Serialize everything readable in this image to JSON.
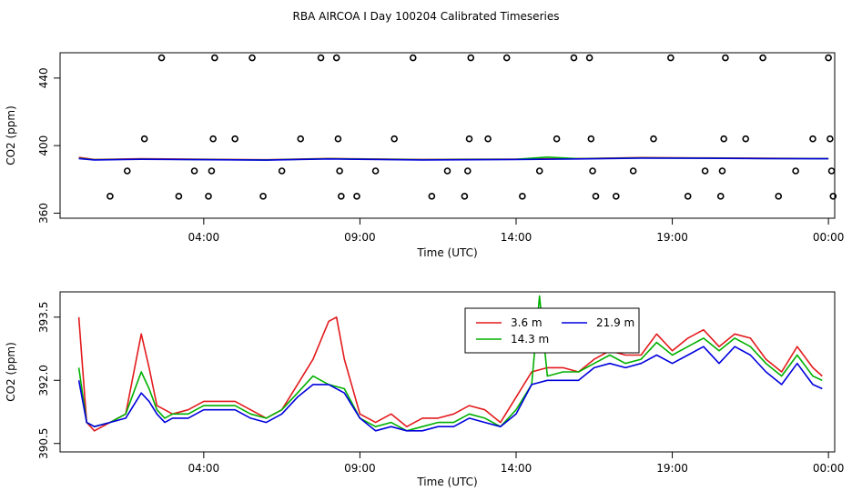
{
  "title": "RBA AIRCOA I  Day 100204  Calibrated Timeseries",
  "colors": {
    "3.6 m": "#e31a1c",
    "14.3 m": "#00b000",
    "21.9 m": "#0000dd",
    "axis": "#000000"
  },
  "chart_data": [
    {
      "type": "scatter",
      "title": "RBA AIRCOA I  Day 100204  Calibrated Timeseries",
      "xlabel": "Time (UTC)",
      "ylabel": "CO2 (ppm)",
      "xlim": [
        -0.6,
        24.2
      ],
      "ylim": [
        357,
        455
      ],
      "xticks": [
        4,
        9,
        14,
        19,
        24
      ],
      "xtick_labels": [
        "04:00",
        "09:00",
        "14:00",
        "19:00",
        "00:00"
      ],
      "yticks": [
        360,
        400,
        440
      ],
      "ytick_labels": [
        "360",
        "400",
        "440"
      ],
      "calibration_points": [
        [
          1.0,
          370
        ],
        [
          1.55,
          385
        ],
        [
          2.1,
          404
        ],
        [
          2.65,
          452
        ],
        [
          3.2,
          370
        ],
        [
          3.7,
          385
        ],
        [
          4.15,
          370
        ],
        [
          4.25,
          385
        ],
        [
          4.3,
          404
        ],
        [
          4.35,
          452
        ],
        [
          5.0,
          404
        ],
        [
          5.55,
          452
        ],
        [
          5.9,
          370
        ],
        [
          6.5,
          385
        ],
        [
          7.1,
          404
        ],
        [
          7.75,
          452
        ],
        [
          8.25,
          452
        ],
        [
          8.3,
          404
        ],
        [
          8.35,
          385
        ],
        [
          8.4,
          370
        ],
        [
          8.9,
          370
        ],
        [
          9.5,
          385
        ],
        [
          10.1,
          404
        ],
        [
          10.7,
          452
        ],
        [
          11.3,
          370
        ],
        [
          11.8,
          385
        ],
        [
          12.35,
          370
        ],
        [
          12.45,
          385
        ],
        [
          12.5,
          404
        ],
        [
          12.55,
          452
        ],
        [
          13.1,
          404
        ],
        [
          13.7,
          452
        ],
        [
          14.2,
          370
        ],
        [
          14.75,
          385
        ],
        [
          15.3,
          404
        ],
        [
          15.85,
          452
        ],
        [
          16.35,
          452
        ],
        [
          16.4,
          404
        ],
        [
          16.45,
          385
        ],
        [
          16.55,
          370
        ],
        [
          17.2,
          370
        ],
        [
          17.75,
          385
        ],
        [
          18.4,
          404
        ],
        [
          18.95,
          452
        ],
        [
          19.5,
          370
        ],
        [
          20.05,
          385
        ],
        [
          20.55,
          370
        ],
        [
          20.6,
          385
        ],
        [
          20.65,
          404
        ],
        [
          20.7,
          452
        ],
        [
          21.35,
          404
        ],
        [
          21.9,
          452
        ],
        [
          22.4,
          370
        ],
        [
          22.95,
          385
        ],
        [
          23.5,
          404
        ],
        [
          24.0,
          452
        ],
        [
          24.05,
          404
        ],
        [
          24.1,
          385
        ],
        [
          24.15,
          370
        ]
      ],
      "series": [
        {
          "name": "3.6 m",
          "x": [
            0,
            0.5,
            2,
            6,
            8,
            11,
            14,
            16,
            18,
            20,
            22,
            24
          ],
          "y": [
            393,
            391.8,
            392.2,
            391.6,
            392.4,
            391.8,
            392,
            392.3,
            392.9,
            392.7,
            392.5,
            392.4
          ]
        },
        {
          "name": "14.3 m",
          "x": [
            0,
            0.5,
            2,
            6,
            8,
            11,
            14,
            15,
            16,
            18,
            20,
            22,
            24
          ],
          "y": [
            392.5,
            391.6,
            392,
            391.5,
            392.2,
            391.6,
            391.9,
            393.2,
            392.2,
            392.7,
            392.6,
            392.4,
            392.3
          ]
        },
        {
          "name": "21.9 m",
          "x": [
            0,
            0.5,
            2,
            6,
            8,
            11,
            14,
            16,
            18,
            20,
            22,
            24
          ],
          "y": [
            392.3,
            391.5,
            391.9,
            391.4,
            392.1,
            391.5,
            391.8,
            392.1,
            392.6,
            392.5,
            392.3,
            392.2
          ]
        }
      ]
    },
    {
      "type": "line",
      "xlabel": "Time (UTC)",
      "ylabel": "CO2 (ppm)",
      "xlim": [
        -0.6,
        24.2
      ],
      "ylim": [
        390.3,
        394.1
      ],
      "xticks": [
        4,
        9,
        14,
        19,
        24
      ],
      "xtick_labels": [
        "04:00",
        "09:00",
        "14:00",
        "19:00",
        "00:00"
      ],
      "yticks": [
        390.5,
        392.0,
        393.5
      ],
      "ytick_labels": [
        "390.5",
        "392.0",
        "393.5"
      ],
      "legend": "top-center",
      "series": [
        {
          "name": "3.6 m",
          "x": [
            0,
            0.25,
            0.5,
            1,
            1.5,
            2,
            2.25,
            2.5,
            2.75,
            3,
            3.5,
            4,
            4.5,
            5,
            5.5,
            6,
            6.5,
            7,
            7.5,
            8,
            8.25,
            8.5,
            9,
            9.5,
            10,
            10.5,
            11,
            11.5,
            12,
            12.5,
            13,
            13.5,
            14,
            14.5,
            15,
            15.5,
            16,
            16.5,
            17,
            17.5,
            18,
            18.5,
            19,
            19.5,
            20,
            20.5,
            21,
            21.5,
            22,
            22.5,
            23,
            23.5,
            23.8
          ],
          "y": [
            393.5,
            391.0,
            390.8,
            391.0,
            391.2,
            393.1,
            392.3,
            391.4,
            391.3,
            391.2,
            391.3,
            391.5,
            391.5,
            391.5,
            391.3,
            391.1,
            391.3,
            391.9,
            392.5,
            393.4,
            393.5,
            392.5,
            391.2,
            391.0,
            391.2,
            390.9,
            391.1,
            391.1,
            391.2,
            391.4,
            391.3,
            391.0,
            391.6,
            392.2,
            392.3,
            392.3,
            392.2,
            392.5,
            392.7,
            392.6,
            392.6,
            393.1,
            392.7,
            393.0,
            393.2,
            392.8,
            393.1,
            393.0,
            392.5,
            392.2,
            392.8,
            392.3,
            392.1
          ]
        },
        {
          "name": "14.3 m",
          "x": [
            0,
            0.25,
            0.5,
            1,
            1.5,
            2,
            2.25,
            2.5,
            2.75,
            3,
            3.5,
            4,
            4.5,
            5,
            5.5,
            6,
            6.5,
            7,
            7.5,
            8,
            8.5,
            9,
            9.5,
            10,
            10.5,
            11,
            11.5,
            12,
            12.5,
            13,
            13.5,
            14,
            14.5,
            14.75,
            15,
            15.5,
            16,
            16.5,
            17,
            17.5,
            18,
            18.5,
            19,
            19.5,
            20,
            20.5,
            21,
            21.5,
            22,
            22.5,
            23,
            23.5,
            23.8
          ],
          "y": [
            392.3,
            391.0,
            390.9,
            391.0,
            391.2,
            392.2,
            391.8,
            391.3,
            391.1,
            391.2,
            391.2,
            391.4,
            391.4,
            391.4,
            391.2,
            391.1,
            391.3,
            391.7,
            392.1,
            391.9,
            391.8,
            391.1,
            390.9,
            391.0,
            390.8,
            390.9,
            391.0,
            391.0,
            391.2,
            391.1,
            390.9,
            391.3,
            391.9,
            394.0,
            392.1,
            392.2,
            392.2,
            392.4,
            392.6,
            392.4,
            392.5,
            392.9,
            392.6,
            392.8,
            393.0,
            392.7,
            393.0,
            392.8,
            392.4,
            392.1,
            392.6,
            392.1,
            392.0
          ]
        },
        {
          "name": "21.9 m",
          "x": [
            0,
            0.25,
            0.5,
            1,
            1.5,
            2,
            2.25,
            2.5,
            2.75,
            3,
            3.5,
            4,
            4.5,
            5,
            5.5,
            6,
            6.5,
            7,
            7.5,
            8,
            8.5,
            9,
            9.5,
            10,
            10.5,
            11,
            11.5,
            12,
            12.5,
            13,
            13.5,
            14,
            14.5,
            15,
            15.5,
            16,
            16.5,
            17,
            17.5,
            18,
            18.5,
            19,
            19.5,
            20,
            20.5,
            21,
            21.5,
            22,
            22.5,
            23,
            23.5,
            23.8
          ],
          "y": [
            392.0,
            391.0,
            390.9,
            391.0,
            391.1,
            391.7,
            391.5,
            391.2,
            391.0,
            391.1,
            391.1,
            391.3,
            391.3,
            391.3,
            391.1,
            391.0,
            391.2,
            391.6,
            391.9,
            391.9,
            391.7,
            391.1,
            390.8,
            390.9,
            390.8,
            390.8,
            390.9,
            390.9,
            391.1,
            391.0,
            390.9,
            391.2,
            391.9,
            392.0,
            392.0,
            392.0,
            392.3,
            392.4,
            392.3,
            392.4,
            392.6,
            392.4,
            392.6,
            392.8,
            392.4,
            392.8,
            392.6,
            392.2,
            391.9,
            392.4,
            391.9,
            391.8
          ]
        }
      ]
    }
  ]
}
